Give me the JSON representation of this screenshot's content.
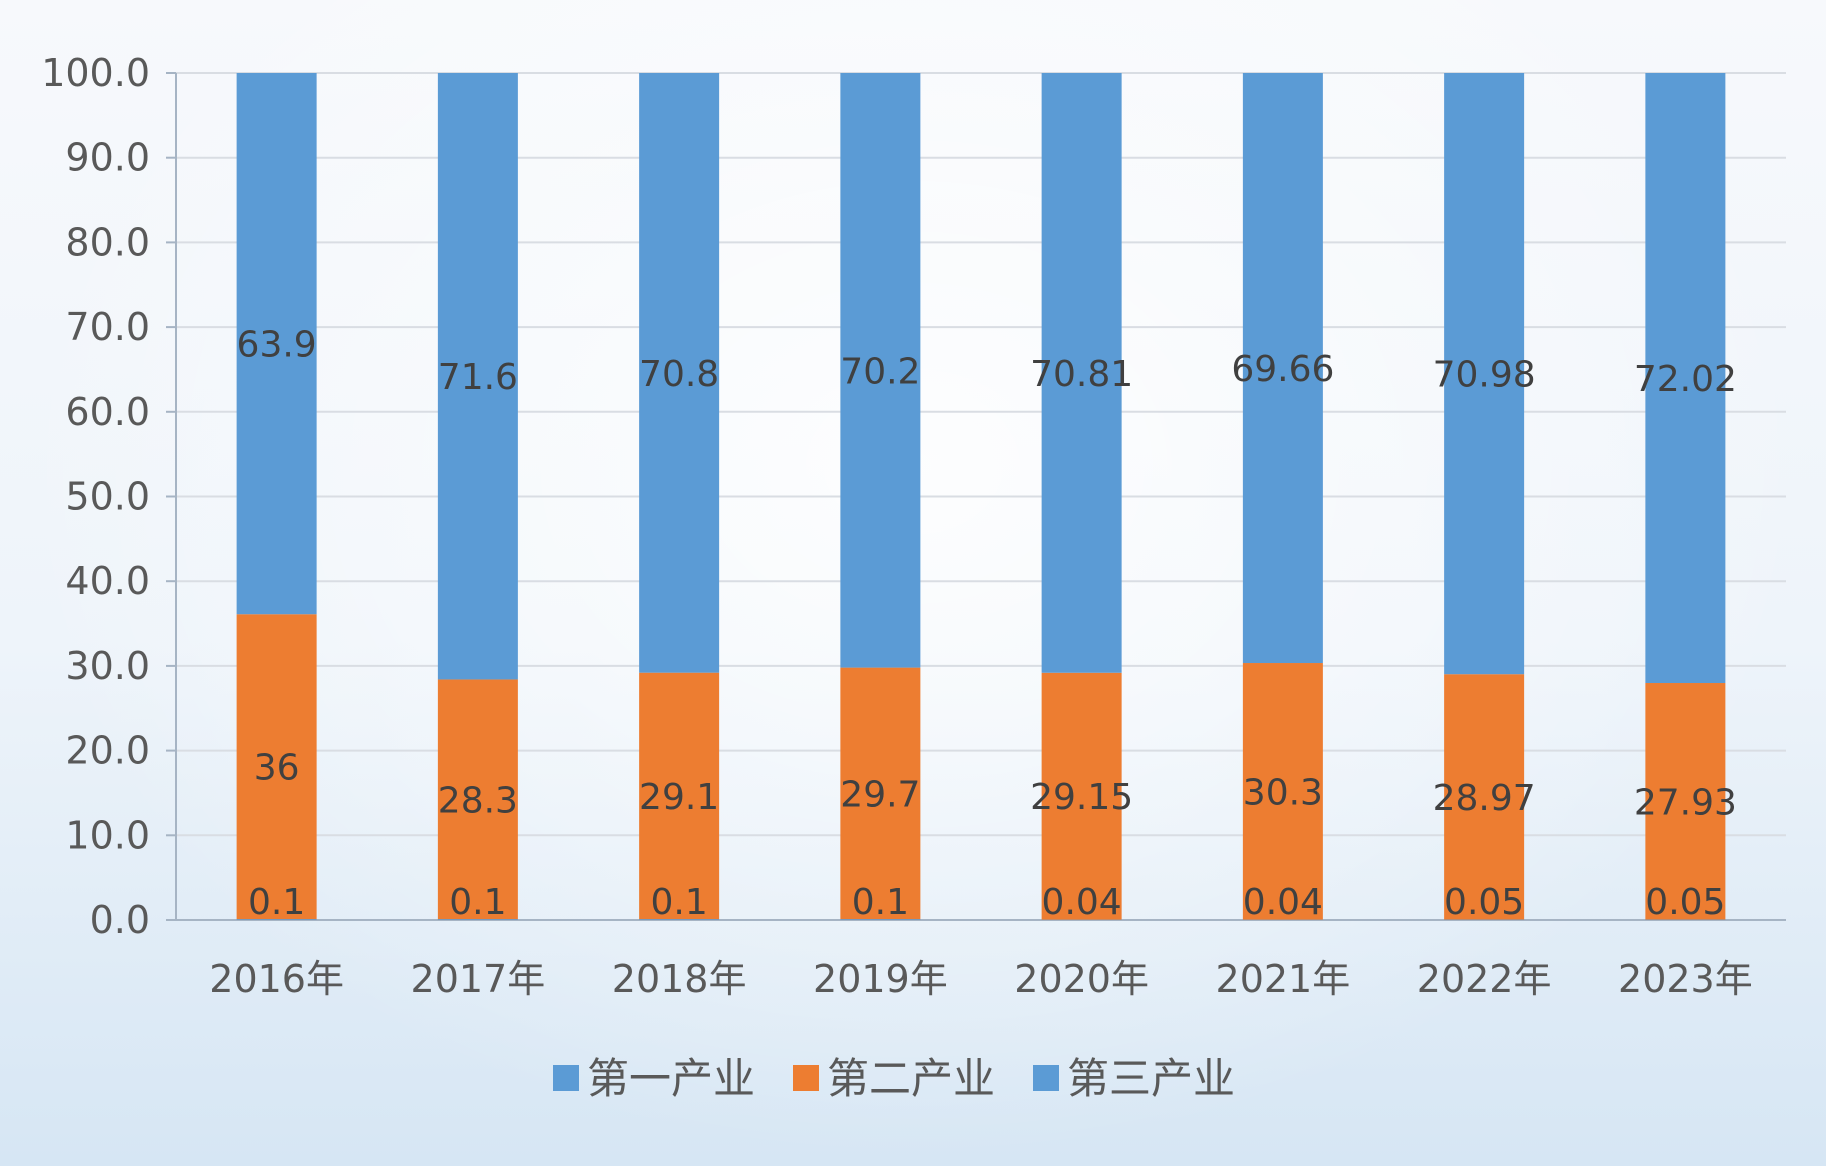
{
  "chart_data": {
    "type": "bar",
    "stacked": true,
    "categories": [
      "2016年",
      "2017年",
      "2018年",
      "2019年",
      "2020年",
      "2021年",
      "2022年",
      "2023年"
    ],
    "series": [
      {
        "name": "第一产业",
        "color": "#5b9bd5",
        "values": [
          0.1,
          0.1,
          0.1,
          0.1,
          0.04,
          0.04,
          0.05,
          0.05
        ],
        "labels": [
          "0.1",
          "0.1",
          "0.1",
          "0.1",
          "0.04",
          "0.04",
          "0.05",
          "0.05"
        ]
      },
      {
        "name": "第二产业",
        "color": "#ed7d31",
        "values": [
          36,
          28.3,
          29.1,
          29.7,
          29.15,
          30.3,
          28.97,
          27.93
        ],
        "labels": [
          "36",
          "28.3",
          "29.1",
          "29.7",
          "29.15",
          "30.3",
          "28.97",
          "27.93"
        ]
      },
      {
        "name": "第三产业",
        "color": "#5b9bd5",
        "values": [
          63.9,
          71.6,
          70.8,
          70.2,
          70.81,
          69.66,
          70.98,
          72.02
        ],
        "labels": [
          "63.9",
          "71.6",
          "70.8",
          "70.2",
          "70.81",
          "69.66",
          "70.98",
          "72.02"
        ]
      }
    ],
    "y_ticks": [
      "0.0",
      "10.0",
      "20.0",
      "30.0",
      "40.0",
      "50.0",
      "60.0",
      "70.0",
      "80.0",
      "90.0",
      "100.0"
    ],
    "ylim": [
      0,
      100
    ],
    "grid": true,
    "legend_position": "bottom"
  }
}
